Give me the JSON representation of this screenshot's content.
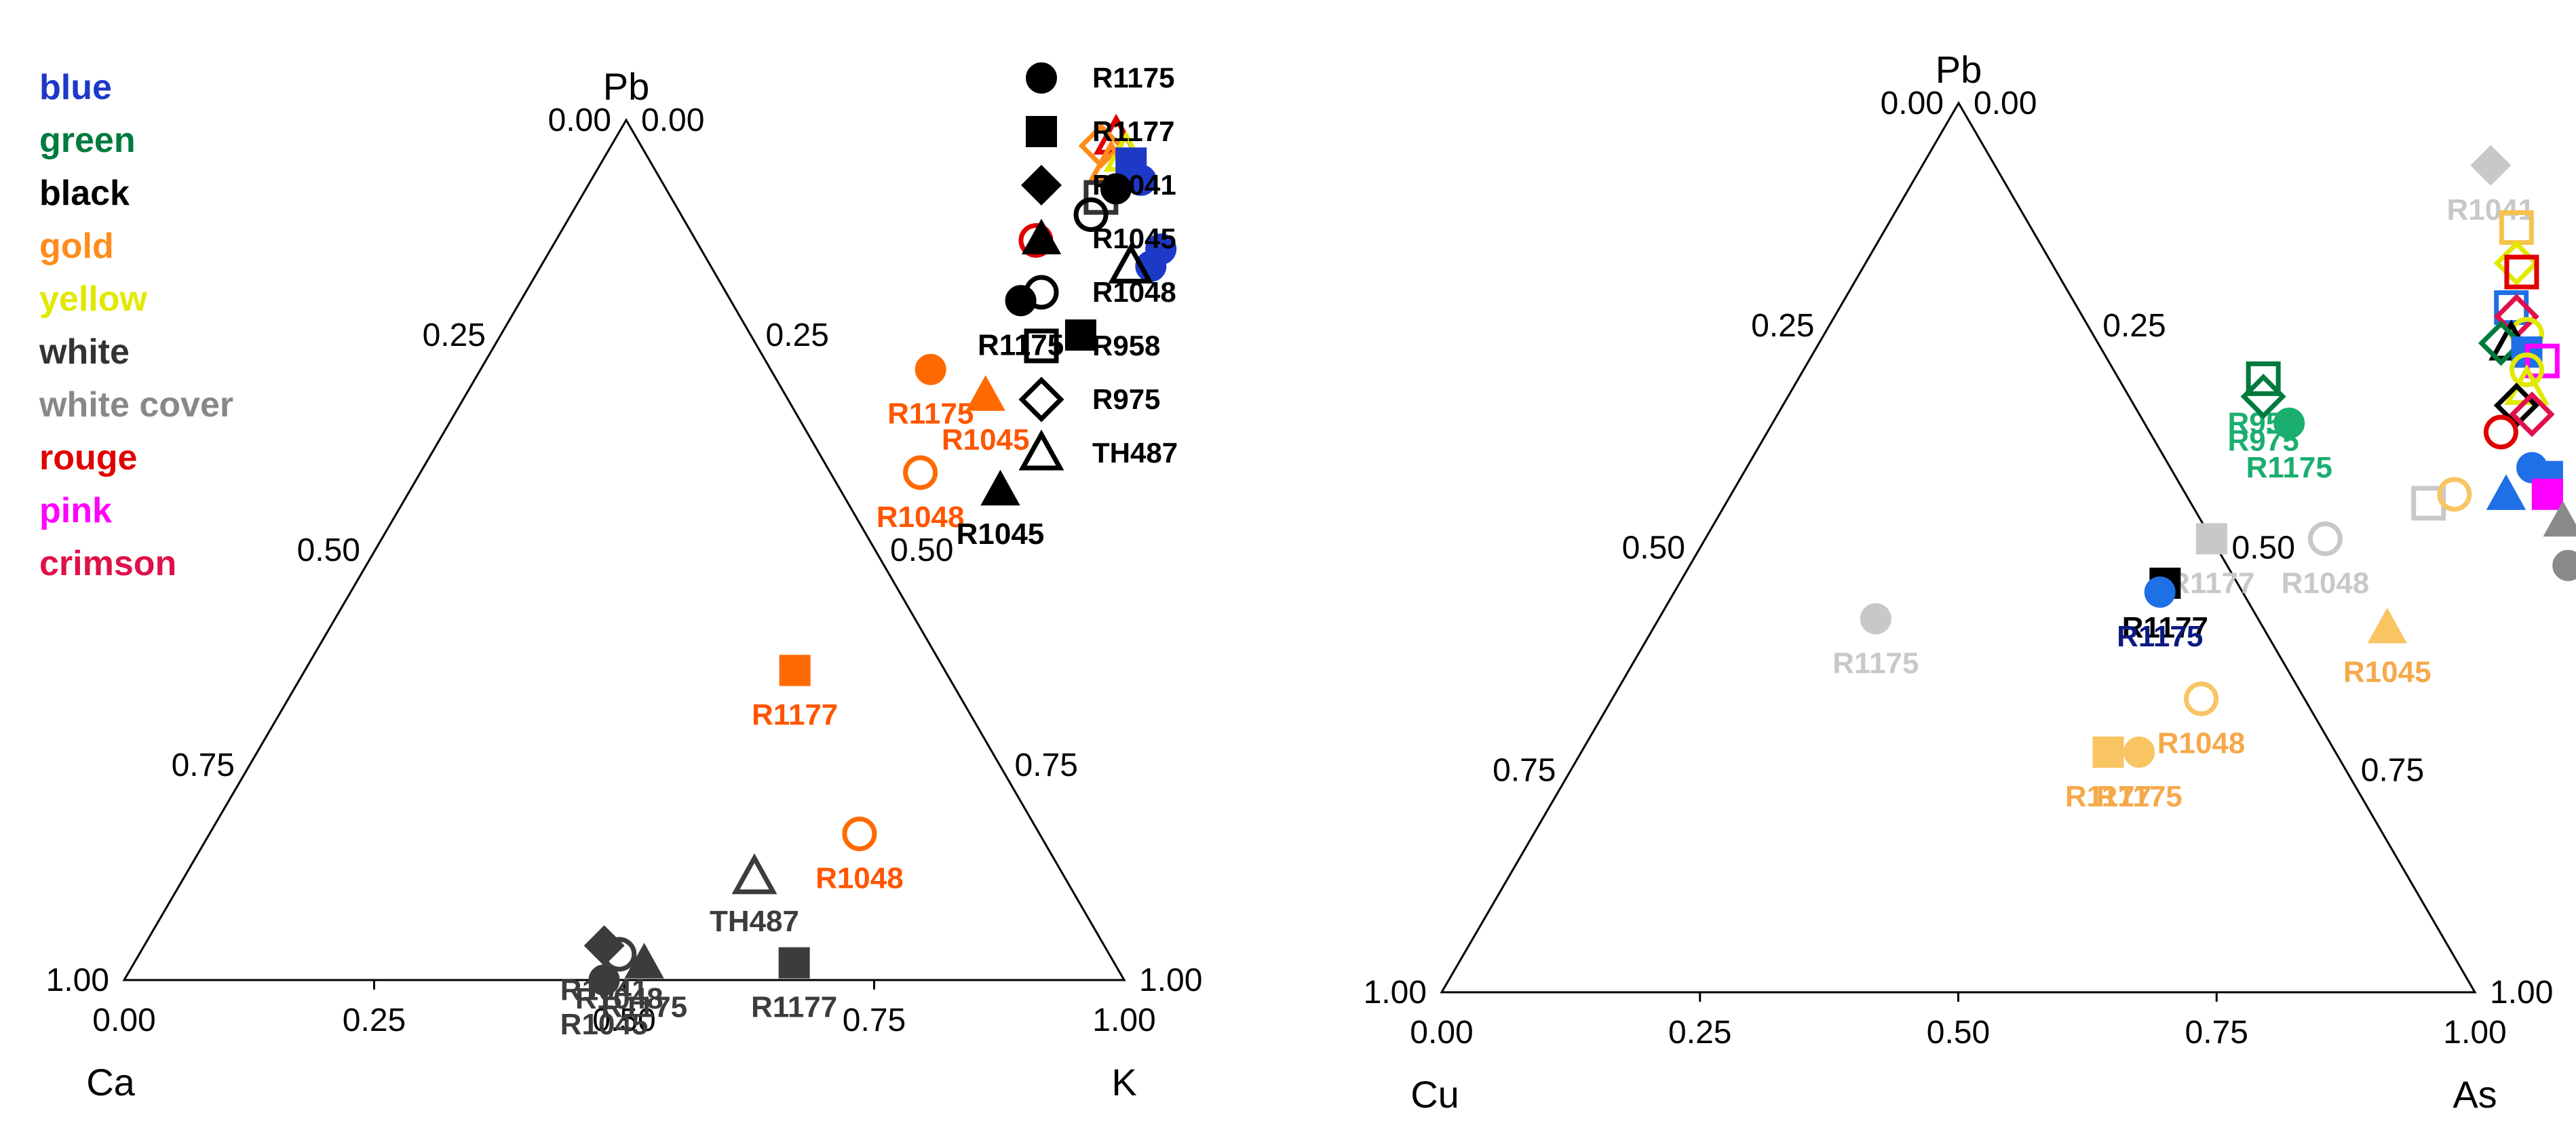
{
  "colors": {
    "blue": "#1d39c8",
    "green": "#007a3d",
    "black": "#000000",
    "gold": "#ff8c1a",
    "yellow": "#e2e800",
    "white": "#333333",
    "white_cover": "#888888",
    "rouge": "#e00000",
    "pink": "#ff00ff",
    "crimson": "#e0104a",
    "orange_red": "#ff5500",
    "orange_marker": "#ff6a00",
    "dark_gray": "#3c3c3c",
    "light_gray": "#c8c8c8",
    "mid_gray": "#8a8a8a",
    "light_orange": "#f9c462",
    "light_orange_text": "#f6a94a",
    "teal_green": "#1aae6f",
    "navy": "#0c1a80",
    "bright_blue": "#1f6fe6",
    "gold_open": "#f7c24a"
  },
  "color_legend": [
    {
      "label": "blue",
      "color": "#1d39c8"
    },
    {
      "label": "green",
      "color": "#007a3d"
    },
    {
      "label": "black",
      "color": "#000000"
    },
    {
      "label": "gold",
      "color": "#ff8c1a"
    },
    {
      "label": "yellow",
      "color": "#e2e800"
    },
    {
      "label": "white",
      "color": "#333333"
    },
    {
      "label": "white cover",
      "color": "#888888"
    },
    {
      "label": "rouge",
      "color": "#e00000"
    },
    {
      "label": "pink",
      "color": "#ff00ff"
    },
    {
      "label": "crimson",
      "color": "#e0104a"
    }
  ],
  "color_legend_dot": ".",
  "marker_legend": [
    {
      "label": "R1175",
      "marker": "circle",
      "filled": true
    },
    {
      "label": "R1177",
      "marker": "square",
      "filled": true
    },
    {
      "label": "R1041",
      "marker": "diamond",
      "filled": true
    },
    {
      "label": "R1045",
      "marker": "triangle",
      "filled": true
    },
    {
      "label": "R1048",
      "marker": "circle",
      "filled": false
    },
    {
      "label": "R958",
      "marker": "square",
      "filled": false
    },
    {
      "label": "R975",
      "marker": "diamond",
      "filled": false
    },
    {
      "label": "TH487",
      "marker": "triangle",
      "filled": false
    }
  ],
  "chart_data": [
    {
      "type": "scatter",
      "subtype": "ternary",
      "vertices": {
        "top": "Pb",
        "left": "Ca",
        "right": "K"
      },
      "ticks": [
        "0.00",
        "0.25",
        "0.50",
        "0.75",
        "1.00"
      ],
      "left_edge_ticks": [
        "1.00",
        "0.75",
        "0.50",
        "0.25",
        "0.00"
      ],
      "right_edge_ticks": [
        "1.00",
        "0.75",
        "0.50",
        "0.25",
        "0.00"
      ],
      "bottom_ticks": [
        "0.00",
        "0.25",
        "0.50",
        "0.75",
        "1.00"
      ],
      "points": [
        {
          "Pb": 0.98,
          "K": 0.5,
          "marker": "triangle",
          "filled": false,
          "color": "#e00000"
        },
        {
          "Pb": 0.97,
          "K": 0.49,
          "marker": "diamond",
          "filled": false,
          "color": "#ff8c1a"
        },
        {
          "Pb": 0.96,
          "K": 0.52,
          "marker": "triangle",
          "filled": false,
          "color": "#e2e800"
        },
        {
          "Pb": 0.95,
          "K": 0.51,
          "marker": "triangle",
          "filled": false,
          "color": "#ff8c1a"
        },
        {
          "Pb": 0.95,
          "K": 0.53,
          "marker": "square",
          "filled": true,
          "color": "#1d39c8"
        },
        {
          "Pb": 0.93,
          "K": 0.55,
          "marker": "circle",
          "filled": true,
          "color": "#1d39c8"
        },
        {
          "Pb": 0.94,
          "K": 0.54,
          "marker": "triangle",
          "filled": false,
          "color": "#1d39c8"
        },
        {
          "Pb": 0.91,
          "K": 0.52,
          "marker": "square",
          "filled": false,
          "color": "#333333"
        },
        {
          "Pb": 0.92,
          "K": 0.53,
          "marker": "circle",
          "filled": true,
          "color": "#000000"
        },
        {
          "Pb": 0.89,
          "K": 0.52,
          "marker": "circle",
          "filled": false,
          "color": "#000000"
        },
        {
          "Pb": 0.86,
          "K": 0.48,
          "marker": "circle",
          "filled": false,
          "color": "#e00000"
        },
        {
          "Pb": 0.85,
          "K": 0.61,
          "marker": "circle",
          "filled": true,
          "color": "#1d39c8"
        },
        {
          "Pb": 0.83,
          "K": 0.61,
          "marker": "circle",
          "filled": true,
          "color": "#1d39c8"
        },
        {
          "Pb": 0.83,
          "K": 0.59,
          "marker": "triangle",
          "filled": false,
          "color": "#000000"
        },
        {
          "Pb": 0.79,
          "K": 0.5,
          "marker": "circle",
          "filled": true,
          "color": "#000000",
          "label": "R1175",
          "label_color": "#000000"
        },
        {
          "Pb": 0.75,
          "K": 0.58,
          "marker": "square",
          "filled": true,
          "color": "#000000"
        },
        {
          "Pb": 0.71,
          "K": 0.45,
          "marker": "circle",
          "filled": true,
          "color": "#ff6a00",
          "label": "R1175",
          "label_color": "#ff5500"
        },
        {
          "Pb": 0.68,
          "K": 0.52,
          "marker": "triangle",
          "filled": true,
          "color": "#ff6a00",
          "label": "R1045",
          "label_color": "#ff5500"
        },
        {
          "Pb": 0.59,
          "K": 0.5,
          "marker": "circle",
          "filled": false,
          "color": "#ff6a00",
          "label": "R1048",
          "label_color": "#ff5500"
        },
        {
          "Pb": 0.57,
          "K": 0.59,
          "marker": "triangle",
          "filled": true,
          "color": "#000000",
          "label": "R1045",
          "label_color": "#000000"
        },
        {
          "Pb": 0.36,
          "K": 0.49,
          "marker": "square",
          "filled": true,
          "color": "#ff6a00",
          "label": "R1177",
          "label_color": "#ff5500"
        },
        {
          "Pb": 0.17,
          "K": 0.65,
          "marker": "circle",
          "filled": false,
          "color": "#ff6a00",
          "label": "R1048",
          "label_color": "#ff5500"
        },
        {
          "Pb": 0.12,
          "K": 0.57,
          "marker": "triangle",
          "filled": false,
          "color": "#3c3c3c",
          "label": "TH487",
          "label_color": "#3c3c3c"
        },
        {
          "Pb": 0.04,
          "K": 0.46,
          "marker": "diamond",
          "filled": true,
          "color": "#3c3c3c",
          "label": "R1041",
          "label_color": "#3c3c3c"
        },
        {
          "Pb": 0.03,
          "K": 0.48,
          "marker": "circle",
          "filled": false,
          "color": "#3c3c3c",
          "label": "R1048",
          "label_color": "#3c3c3c"
        },
        {
          "Pb": 0.02,
          "K": 0.51,
          "marker": "triangle",
          "filled": true,
          "color": "#3c3c3c",
          "label": "R1175",
          "label_color": "#3c3c3c"
        },
        {
          "Pb": 0.02,
          "K": 0.66,
          "marker": "square",
          "filled": true,
          "color": "#3c3c3c",
          "label": "R1177",
          "label_color": "#3c3c3c"
        },
        {
          "Pb": 0.0,
          "K": 0.48,
          "marker": "circle",
          "filled": true,
          "color": "#3c3c3c",
          "label": "R1045",
          "label_color": "#3c3c3c"
        }
      ]
    },
    {
      "type": "scatter",
      "subtype": "ternary",
      "vertices": {
        "top": "Pb",
        "left": "Cu",
        "right": "As"
      },
      "ticks": [
        "0.00",
        "0.25",
        "0.50",
        "0.75",
        "1.00"
      ],
      "left_edge_ticks": [
        "1.00",
        "0.75",
        "0.50",
        "0.25",
        "0.00"
      ],
      "right_edge_ticks": [
        "1.00",
        "0.75",
        "0.50",
        "0.25",
        "0.00"
      ],
      "bottom_ticks": [
        "0.00",
        "0.25",
        "0.50",
        "0.75",
        "1.00"
      ],
      "points": [
        {
          "Pb": 0.93,
          "As": 0.55,
          "marker": "diamond",
          "filled": true,
          "color": "#c8c8c8",
          "label": "R1041",
          "label_color": "#c8c8c8"
        },
        {
          "Pb": 0.86,
          "As": 0.61,
          "marker": "square",
          "filled": false,
          "color": "#f7c24a"
        },
        {
          "Pb": 0.82,
          "As": 0.63,
          "marker": "diamond",
          "filled": false,
          "color": "#e2e800"
        },
        {
          "Pb": 0.81,
          "As": 0.64,
          "marker": "square",
          "filled": false,
          "color": "#e00000"
        },
        {
          "Pb": 0.77,
          "As": 0.65,
          "marker": "square",
          "filled": false,
          "color": "#1f6fe6"
        },
        {
          "Pb": 0.76,
          "As": 0.66,
          "marker": "diamond",
          "filled": false,
          "color": "#e0104a"
        },
        {
          "Pb": 0.74,
          "As": 0.68,
          "marker": "circle",
          "filled": false,
          "color": "#e2e800"
        },
        {
          "Pb": 0.73,
          "As": 0.67,
          "marker": "triangle",
          "filled": false,
          "color": "#000000"
        },
        {
          "Pb": 0.73,
          "As": 0.66,
          "marker": "diamond",
          "filled": false,
          "color": "#007a3d"
        },
        {
          "Pb": 0.72,
          "As": 0.69,
          "marker": "square",
          "filled": true,
          "color": "#1f6fe6"
        },
        {
          "Pb": 0.71,
          "As": 0.71,
          "marker": "square",
          "filled": false,
          "color": "#ff00ff"
        },
        {
          "Pb": 0.7,
          "As": 0.7,
          "marker": "circle",
          "filled": false,
          "color": "#e2e800"
        },
        {
          "Pb": 0.68,
          "As": 0.71,
          "marker": "triangle",
          "filled": false,
          "color": "#e2e800"
        },
        {
          "Pb": 0.66,
          "As": 0.71,
          "marker": "diamond",
          "filled": false,
          "color": "#000000"
        },
        {
          "Pb": 0.65,
          "As": 0.73,
          "marker": "diamond",
          "filled": false,
          "color": "#e0104a"
        },
        {
          "Pb": 0.63,
          "As": 0.71,
          "marker": "circle",
          "filled": false,
          "color": "#e00000"
        },
        {
          "Pb": 0.69,
          "As": 0.45,
          "marker": "square",
          "filled": false,
          "color": "#007a3d",
          "label": "R958",
          "label_color": "#1aae6f"
        },
        {
          "Pb": 0.67,
          "As": 0.46,
          "marker": "diamond",
          "filled": false,
          "color": "#007a3d",
          "label": "R975",
          "label_color": "#1aae6f"
        },
        {
          "Pb": 0.64,
          "As": 0.5,
          "marker": "circle",
          "filled": true,
          "color": "#1aae6f",
          "label": "R1175",
          "label_color": "#1aae6f"
        },
        {
          "Pb": 0.59,
          "As": 0.76,
          "marker": "circle",
          "filled": true,
          "color": "#1f6fe6"
        },
        {
          "Pb": 0.58,
          "As": 0.78,
          "marker": "square",
          "filled": true,
          "color": "#1f6fe6"
        },
        {
          "Pb": 0.56,
          "As": 0.79,
          "marker": "square",
          "filled": true,
          "color": "#ff00ff"
        },
        {
          "Pb": 0.56,
          "As": 0.75,
          "marker": "triangle",
          "filled": true,
          "color": "#1f6fe6"
        },
        {
          "Pb": 0.55,
          "As": 0.68,
          "marker": "square",
          "filled": false,
          "color": "#c8c8c8"
        },
        {
          "Pb": 0.56,
          "As": 0.7,
          "marker": "circle",
          "filled": false,
          "color": "#f9c462"
        },
        {
          "Pb": 0.53,
          "As": 0.82,
          "marker": "triangle",
          "filled": true,
          "color": "#8a8a8a"
        },
        {
          "Pb": 0.51,
          "As": 0.86,
          "marker": "circle",
          "filled": false,
          "color": "#8a8a8a"
        },
        {
          "Pb": 0.5,
          "As": 0.87,
          "marker": "circle",
          "filled": true,
          "color": "#e00000"
        },
        {
          "Pb": 0.48,
          "As": 0.85,
          "marker": "circle",
          "filled": true,
          "color": "#8a8a8a"
        },
        {
          "Pb": 0.48,
          "As": 0.87,
          "marker": "circle",
          "filled": true,
          "color": "#8a8a8a"
        },
        {
          "Pb": 0.51,
          "As": 0.49,
          "marker": "square",
          "filled": true,
          "color": "#c8c8c8",
          "label": "R1177",
          "label_color": "#c8c8c8"
        },
        {
          "Pb": 0.51,
          "As": 0.6,
          "marker": "circle",
          "filled": false,
          "color": "#c8c8c8",
          "label": "R1048",
          "label_color": "#c8c8c8"
        },
        {
          "Pb": 0.46,
          "As": 0.47,
          "marker": "square",
          "filled": true,
          "color": "#000000",
          "label": "R1177",
          "label_color": "#000000"
        },
        {
          "Pb": 0.45,
          "As": 0.47,
          "marker": "circle",
          "filled": true,
          "color": "#1f6fe6",
          "label": "R1175",
          "label_color": "#0c1a80"
        },
        {
          "Pb": 0.42,
          "As": 0.21,
          "marker": "circle",
          "filled": true,
          "color": "#c8c8c8",
          "label": "R1175",
          "label_color": "#c8c8c8"
        },
        {
          "Pb": 0.41,
          "As": 0.71,
          "marker": "triangle",
          "filled": true,
          "color": "#f9c462",
          "label": "R1045",
          "label_color": "#f6a94a"
        },
        {
          "Pb": 0.33,
          "As": 0.57,
          "marker": "circle",
          "filled": false,
          "color": "#f9c462",
          "label": "R1048",
          "label_color": "#f6a94a"
        },
        {
          "Pb": 0.27,
          "As": 0.54,
          "marker": "circle",
          "filled": true,
          "color": "#f9c462",
          "label": "R1175",
          "label_color": "#f6a94a"
        },
        {
          "Pb": 0.27,
          "As": 0.51,
          "marker": "square",
          "filled": true,
          "color": "#f9c462",
          "label": "R1177",
          "label_color": "#f6a94a"
        }
      ]
    }
  ]
}
